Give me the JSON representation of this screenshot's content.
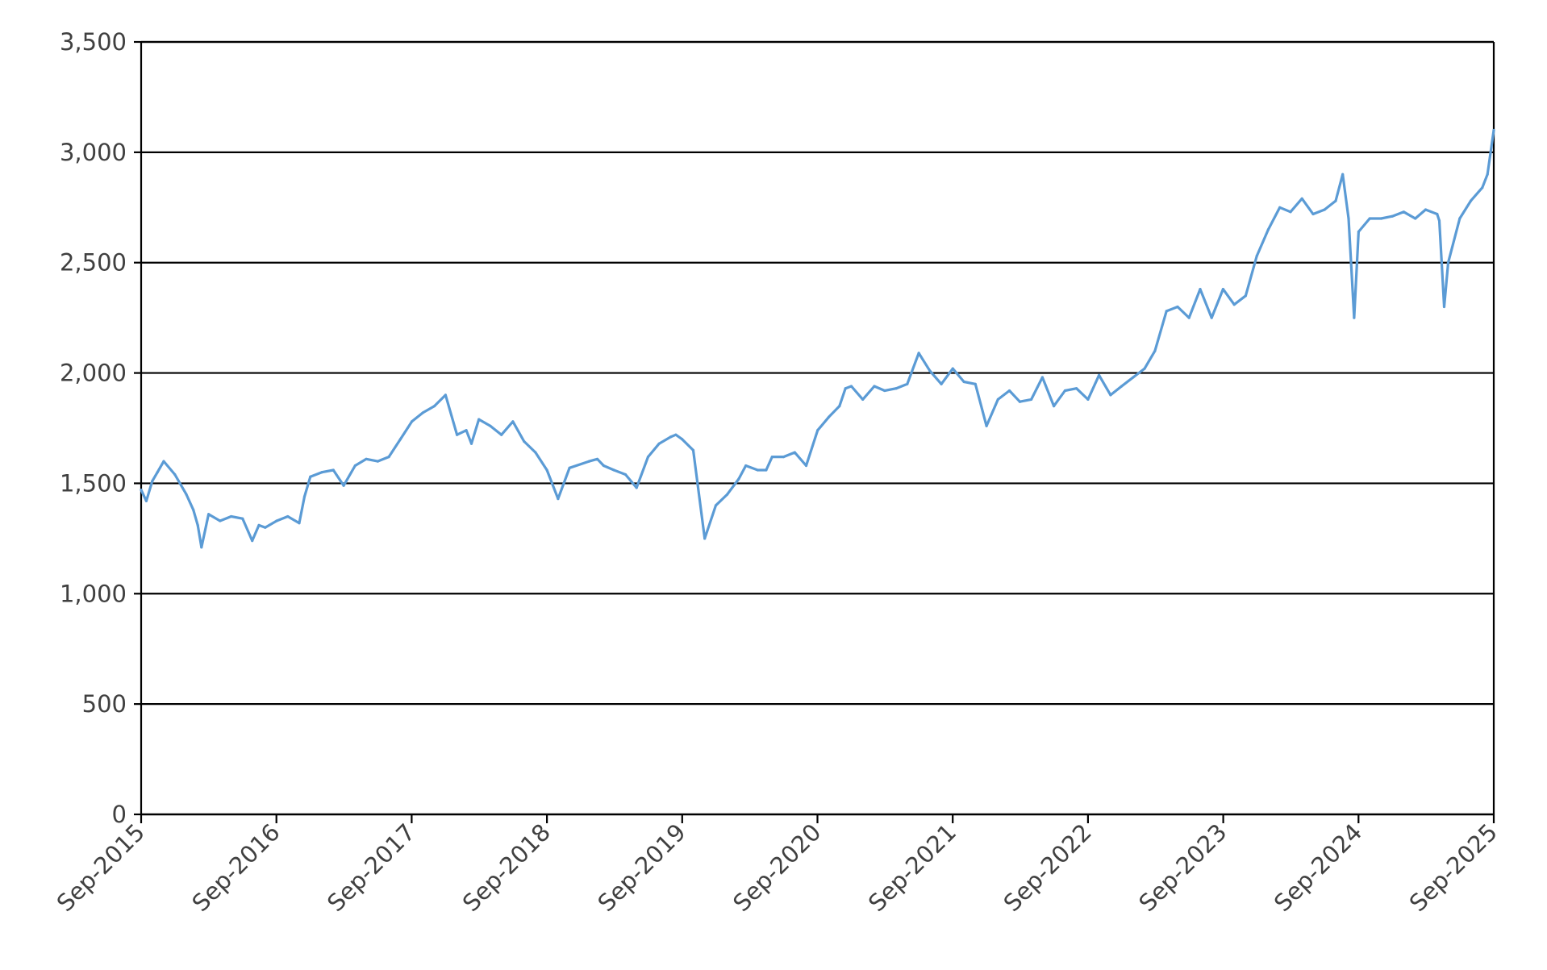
{
  "chart_data": {
    "type": "line",
    "title": "",
    "xlabel": "",
    "ylabel": "",
    "ylim": [
      0,
      3500
    ],
    "yticks": [
      0,
      500,
      1000,
      1500,
      2000,
      2500,
      3000,
      3500
    ],
    "ytick_labels": [
      "0",
      "500",
      "1,000",
      "1,500",
      "2,000",
      "2,500",
      "3,000",
      "3,500"
    ],
    "xlim": [
      "2015-09",
      "2025-09"
    ],
    "xtick_labels": [
      "Sep-2015",
      "Sep-2016",
      "Sep-2017",
      "Sep-2018",
      "Sep-2019",
      "Sep-2020",
      "Sep-2021",
      "Sep-2022",
      "Sep-2023",
      "Sep-2024",
      "Sep-2025"
    ],
    "grid": "horizontal",
    "legend": "none",
    "line_color": "#5b9bd5",
    "series": [
      {
        "x": [
          "2015-09-01",
          "2015-09-15",
          "2015-10-01",
          "2015-10-15",
          "2015-11-01",
          "2015-12-01",
          "2016-01-01",
          "2016-01-20",
          "2016-02-01",
          "2016-02-11",
          "2016-03-01",
          "2016-04-01",
          "2016-05-01",
          "2016-06-01",
          "2016-06-27",
          "2016-07-15",
          "2016-08-01",
          "2016-09-01",
          "2016-10-01",
          "2016-11-01",
          "2016-11-15",
          "2016-12-01",
          "2017-01-01",
          "2017-02-01",
          "2017-03-01",
          "2017-04-01",
          "2017-05-01",
          "2017-06-01",
          "2017-07-01",
          "2017-08-01",
          "2017-09-01",
          "2017-10-01",
          "2017-11-01",
          "2017-12-01",
          "2018-01-01",
          "2018-01-26",
          "2018-02-09",
          "2018-03-01",
          "2018-04-01",
          "2018-05-01",
          "2018-06-01",
          "2018-07-01",
          "2018-08-01",
          "2018-09-01",
          "2018-10-01",
          "2018-11-01",
          "2018-12-24",
          "2019-01-15",
          "2019-02-01",
          "2019-03-01",
          "2019-04-01",
          "2019-05-01",
          "2019-06-01",
          "2019-07-01",
          "2019-08-01",
          "2019-08-15",
          "2019-09-01",
          "2019-10-01",
          "2019-11-01",
          "2019-12-01",
          "2020-01-01",
          "2020-02-01",
          "2020-02-20",
          "2020-03-23",
          "2020-04-15",
          "2020-05-01",
          "2020-06-01",
          "2020-07-01",
          "2020-08-01",
          "2020-09-01",
          "2020-10-01",
          "2020-10-30",
          "2020-11-15",
          "2020-12-01",
          "2021-01-01",
          "2021-02-01",
          "2021-03-01",
          "2021-04-01",
          "2021-05-01",
          "2021-06-01",
          "2021-07-01",
          "2021-08-01",
          "2021-09-01",
          "2021-10-01",
          "2021-11-01",
          "2021-12-01",
          "2022-01-01",
          "2022-02-01",
          "2022-03-01",
          "2022-04-01",
          "2022-05-01",
          "2022-06-01",
          "2022-07-01",
          "2022-08-01",
          "2022-09-01",
          "2022-10-01",
          "2022-11-01",
          "2022-12-01",
          "2023-01-01",
          "2023-02-01",
          "2023-03-01",
          "2023-04-01",
          "2023-05-01",
          "2023-06-01",
          "2023-07-01",
          "2023-08-01",
          "2023-09-01",
          "2023-10-01",
          "2023-11-01",
          "2023-12-01",
          "2024-01-01",
          "2024-02-01",
          "2024-03-01",
          "2024-04-01",
          "2024-05-01",
          "2024-06-01",
          "2024-07-01",
          "2024-07-20",
          "2024-08-05",
          "2024-08-20",
          "2024-09-01",
          "2024-10-01",
          "2024-11-01",
          "2024-12-01",
          "2025-01-01",
          "2025-02-01",
          "2025-03-01",
          "2025-04-01",
          "2025-04-07",
          "2025-04-20",
          "2025-05-01",
          "2025-06-01",
          "2025-07-01",
          "2025-08-01",
          "2025-08-15",
          "2025-09-01"
        ],
        "values": [
          1470,
          1420,
          1510,
          1550,
          1600,
          1540,
          1450,
          1380,
          1310,
          1210,
          1360,
          1330,
          1350,
          1340,
          1240,
          1310,
          1300,
          1330,
          1350,
          1320,
          1440,
          1530,
          1550,
          1560,
          1490,
          1580,
          1610,
          1600,
          1620,
          1700,
          1780,
          1820,
          1850,
          1900,
          1720,
          1740,
          1680,
          1790,
          1760,
          1720,
          1780,
          1690,
          1640,
          1560,
          1430,
          1570,
          1600,
          1610,
          1580,
          1560,
          1540,
          1480,
          1620,
          1680,
          1710,
          1720,
          1700,
          1650,
          1250,
          1400,
          1450,
          1520,
          1580,
          1560,
          1560,
          1620,
          1620,
          1640,
          1580,
          1740,
          1800,
          1850,
          1930,
          1940,
          1880,
          1940,
          1920,
          1930,
          1950,
          2090,
          2010,
          1950,
          2020,
          1960,
          1950,
          1760,
          1880,
          1920,
          1870,
          1880,
          1980,
          1850,
          1920,
          1930,
          1880,
          1990,
          1900,
          1940,
          1980,
          2020,
          2100,
          2280,
          2300,
          2250,
          2380,
          2250,
          2380,
          2310,
          2350,
          2530,
          2650,
          2750,
          2730,
          2790,
          2720,
          2740,
          2780,
          2900,
          2700,
          2250,
          2640,
          2700,
          2700,
          2710,
          2730,
          2700,
          2740,
          2720,
          2690,
          2300,
          2500,
          2700,
          2780,
          2840,
          2900,
          3100
        ]
      }
    ]
  }
}
